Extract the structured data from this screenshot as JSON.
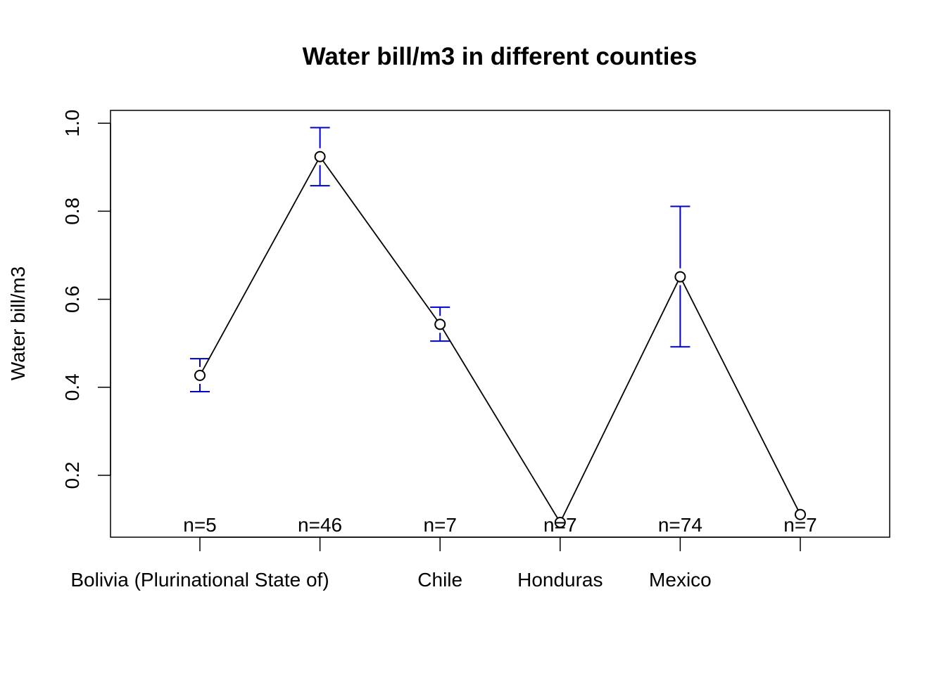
{
  "chart_data": {
    "type": "line",
    "title": "Water bill/m3 in different counties",
    "xlabel": "",
    "ylabel": "Water bill/m3",
    "categories": [
      "Bolivia (Plurinational State of)",
      "",
      "Chile",
      "Honduras",
      "Mexico",
      ""
    ],
    "values": [
      0.427,
      0.924,
      0.543,
      0.093,
      0.651,
      0.111
    ],
    "error_low": [
      0.39,
      0.858,
      0.505,
      null,
      0.492,
      null
    ],
    "error_high": [
      0.465,
      0.99,
      0.582,
      null,
      0.811,
      null
    ],
    "n_labels": [
      "n=5",
      "n=46",
      "n=7",
      "n=7",
      "n=74",
      "n=7"
    ],
    "yticks": [
      0.2,
      0.4,
      0.6,
      0.8,
      1.0
    ],
    "ytick_labels": [
      "0.2",
      "0.4",
      "0.6",
      "0.8",
      "1.0"
    ],
    "ylim": [
      0.06,
      1.03
    ],
    "grid": false,
    "legend": "none",
    "line_color": "#000000",
    "errorbar_color": "#0000cc"
  }
}
